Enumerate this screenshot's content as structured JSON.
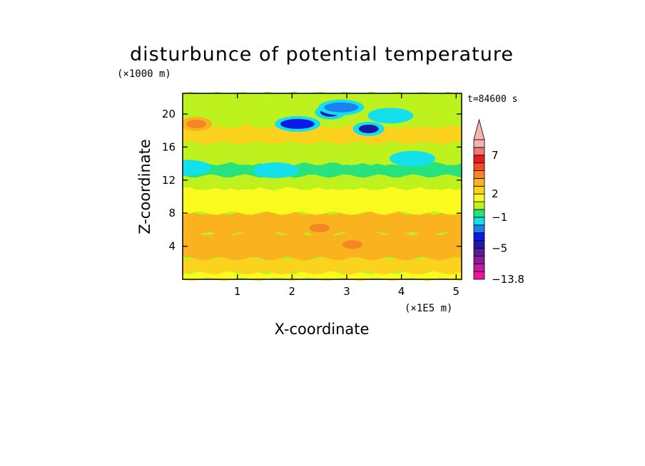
{
  "chart_data": {
    "type": "heatmap",
    "title": "disturbunce of potential temperature",
    "xlabel": "X-coordinate",
    "ylabel": "Z-coordinate",
    "x_unit": "(×1E5 m)",
    "y_unit": "(×1000 m)",
    "time_label": "t=84600 s",
    "xlim": [
      0,
      5.1
    ],
    "ylim": [
      0,
      22.5
    ],
    "x_ticks": [
      1,
      2,
      3,
      4,
      5
    ],
    "y_ticks": [
      4,
      8,
      12,
      16,
      20
    ],
    "colorbar": {
      "min": -13.8,
      "extend": "max",
      "tick_labels": [
        {
          "value": 7,
          "label": "7"
        },
        {
          "value": 2,
          "label": "2"
        },
        {
          "value": -1,
          "label": "−1"
        },
        {
          "value": -5,
          "label": "−5"
        },
        {
          "value": -13.8,
          "label": "−13.8"
        }
      ],
      "levels": [
        {
          "lo": -13.8,
          "hi": -9,
          "color": "#e8189a"
        },
        {
          "lo": -9,
          "hi": -7,
          "color": "#c81a9c"
        },
        {
          "lo": -7,
          "hi": -6,
          "color": "#8a1a9a"
        },
        {
          "lo": -6,
          "hi": -5,
          "color": "#5a1a98"
        },
        {
          "lo": -5,
          "hi": -4,
          "color": "#1a1aa8"
        },
        {
          "lo": -4,
          "hi": -3,
          "color": "#0a1ae6"
        },
        {
          "lo": -3,
          "hi": -2,
          "color": "#1a82f0"
        },
        {
          "lo": -2,
          "hi": -1,
          "color": "#14e0ec"
        },
        {
          "lo": -1,
          "hi": 0,
          "color": "#27e27d"
        },
        {
          "lo": 0,
          "hi": 1,
          "color": "#bef21e"
        },
        {
          "lo": 1,
          "hi": 2,
          "color": "#fafa1e"
        },
        {
          "lo": 2,
          "hi": 3,
          "color": "#fbd21e"
        },
        {
          "lo": 3,
          "hi": 4,
          "color": "#fab21e"
        },
        {
          "lo": 4,
          "hi": 5,
          "color": "#f48628"
        },
        {
          "lo": 5,
          "hi": 6,
          "color": "#f24a24"
        },
        {
          "lo": 6,
          "hi": 7,
          "color": "#e81a1a"
        },
        {
          "lo": 7,
          "hi": 8,
          "color": "#f07878"
        },
        {
          "lo": 8,
          "hi": 10,
          "color": "#f5b4b4"
        }
      ]
    },
    "field": {
      "description": "2-D field theta'(x,z)",
      "bands": [
        {
          "z": [
            0,
            0.8
          ],
          "value": 1.5
        },
        {
          "z": [
            0.8,
            2.5
          ],
          "value": 2.5
        },
        {
          "z": [
            2.5,
            5.5
          ],
          "value": 3.5
        },
        {
          "z": [
            5.5,
            8
          ],
          "value": 3.2
        },
        {
          "z": [
            8,
            11
          ],
          "value": 1.7
        },
        {
          "z": [
            11,
            12.5
          ],
          "value": 0.6
        },
        {
          "z": [
            12.5,
            14
          ],
          "value": -0.6
        },
        {
          "z": [
            14,
            16.5
          ],
          "value": 0.2
        },
        {
          "z": [
            16.5,
            18.5
          ],
          "value": 2.4
        },
        {
          "z": [
            18.5,
            22.5
          ],
          "value": 0.8
        }
      ],
      "anomalies": [
        {
          "x": 0.25,
          "z": 18.8,
          "value": 4.5
        },
        {
          "x": 2.7,
          "z": 20.2,
          "value": -4.5
        },
        {
          "x": 3.4,
          "z": 18.2,
          "value": -4.5
        },
        {
          "x": 2.1,
          "z": 18.8,
          "value": -3.5
        },
        {
          "x": 2.9,
          "z": 20.8,
          "value": -3
        },
        {
          "x": 3.8,
          "z": 19.8,
          "value": -2
        },
        {
          "x": 0.1,
          "z": 13.5,
          "value": -1.5
        },
        {
          "x": 1.7,
          "z": 13.2,
          "value": -1.5
        },
        {
          "x": 4.2,
          "z": 14.6,
          "value": -1.5
        },
        {
          "x": 3.1,
          "z": 4.2,
          "value": 4.5
        },
        {
          "x": 2.5,
          "z": 6.2,
          "value": 4.2
        }
      ]
    }
  }
}
